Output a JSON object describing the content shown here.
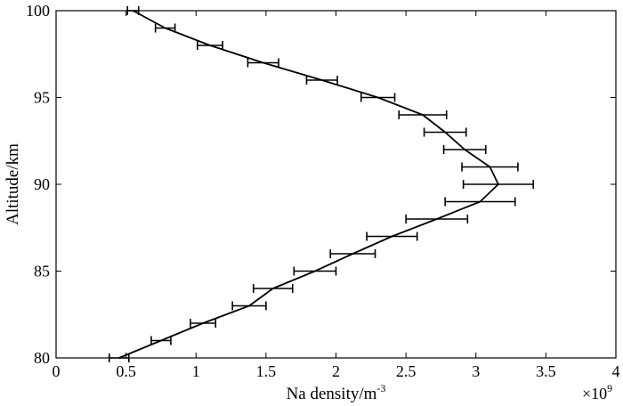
{
  "chart_data": {
    "type": "line",
    "title": "",
    "xlabel": "Na density/m",
    "xlabel_superscript": "-3",
    "ylabel": "Altitude/km",
    "x_multiplier_base": "×10",
    "x_multiplier_exponent": "9",
    "xlim": [
      0,
      4
    ],
    "ylim": [
      80,
      100
    ],
    "x_ticks": [
      0,
      0.5,
      1,
      1.5,
      2,
      2.5,
      3,
      3.5,
      4
    ],
    "x_tick_labels": [
      "0",
      "0.5",
      "1",
      "1.5",
      "2",
      "2.5",
      "3",
      "3.5",
      "4"
    ],
    "y_ticks": [
      80,
      85,
      90,
      95,
      100
    ],
    "y_tick_labels": [
      "80",
      "85",
      "90",
      "95",
      "100"
    ],
    "grid": false,
    "line_color": "#000000",
    "series": [
      {
        "altitude": [
          80,
          81,
          82,
          83,
          84,
          85,
          86,
          87,
          88,
          89,
          90,
          91,
          92,
          93,
          94,
          95,
          96,
          97,
          98,
          99,
          100
        ],
        "density": [
          0.45,
          0.75,
          1.05,
          1.38,
          1.55,
          1.85,
          2.12,
          2.4,
          2.72,
          3.03,
          3.16,
          3.1,
          2.92,
          2.78,
          2.62,
          2.3,
          1.9,
          1.48,
          1.1,
          0.78,
          0.55
        ],
        "error": [
          0.07,
          0.07,
          0.09,
          0.12,
          0.14,
          0.15,
          0.16,
          0.18,
          0.22,
          0.25,
          0.25,
          0.2,
          0.15,
          0.15,
          0.17,
          0.12,
          0.11,
          0.11,
          0.09,
          0.07,
          0.04
        ]
      }
    ]
  }
}
